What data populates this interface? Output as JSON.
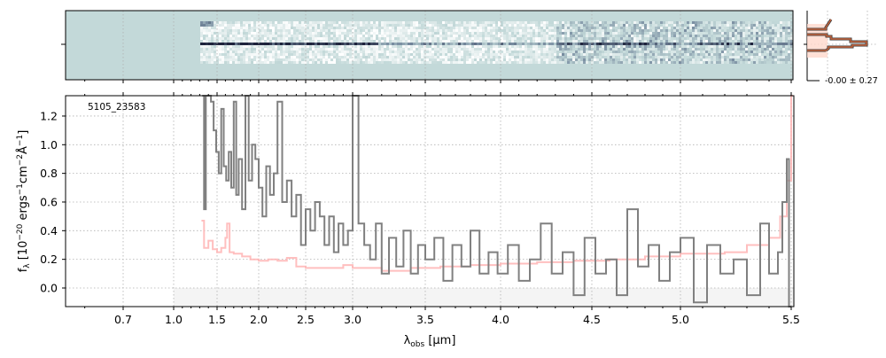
{
  "chart_data": {
    "type": "line",
    "title": "",
    "object_label": "5105_23583",
    "xlabel": {
      "main": "λ",
      "sub": "obs",
      "rest": " [μm]"
    },
    "ylabel": [
      {
        "t": "f",
        "s": "n"
      },
      {
        "t": "λ",
        "s": "sub"
      },
      {
        "t": " [10",
        "s": "n"
      },
      {
        "t": "−20",
        "s": "sup"
      },
      {
        "t": " ergs",
        "s": "n"
      },
      {
        "t": "−1",
        "s": "sup"
      },
      {
        "t": "cm",
        "s": "n"
      },
      {
        "t": "−2",
        "s": "sup"
      },
      {
        "t": "Å",
        "s": "n"
      },
      {
        "t": "−1",
        "s": "sup"
      },
      {
        "t": "]",
        "s": "n"
      }
    ],
    "xticks": [
      "0.7",
      "1.0",
      "1.5",
      "2.0",
      "2.5",
      "3.0",
      "3.5",
      "4.0",
      "4.5",
      "5.0",
      "5.5"
    ],
    "yticks": [
      "0.0",
      "0.2",
      "0.4",
      "0.6",
      "0.8",
      "1.0",
      "1.2"
    ],
    "ylim": [
      -0.13,
      1.34
    ],
    "xlim": [
      0.55,
      5.52
    ],
    "grid": true,
    "colors": {
      "flux": "#808080",
      "error": "#ffb4b4",
      "image_bg": "#c3d9d9",
      "hist": "#8b3a1e"
    },
    "series": [
      {
        "name": "flux",
        "x": [
          1.33,
          1.35,
          1.37,
          1.4,
          1.43,
          1.46,
          1.49,
          1.52,
          1.55,
          1.58,
          1.61,
          1.64,
          1.67,
          1.7,
          1.73,
          1.76,
          1.8,
          1.84,
          1.88,
          1.92,
          1.96,
          2.0,
          2.04,
          2.08,
          2.12,
          2.16,
          2.2,
          2.25,
          2.3,
          2.35,
          2.4,
          2.45,
          2.5,
          2.55,
          2.6,
          2.65,
          2.7,
          2.75,
          2.8,
          2.85,
          2.9,
          2.95,
          3.0,
          3.04,
          3.08,
          3.12,
          3.16,
          3.2,
          3.25,
          3.3,
          3.35,
          3.4,
          3.45,
          3.5,
          3.56,
          3.62,
          3.68,
          3.74,
          3.8,
          3.86,
          3.92,
          3.98,
          4.04,
          4.1,
          4.16,
          4.22,
          4.28,
          4.34,
          4.4,
          4.46,
          4.52,
          4.58,
          4.64,
          4.7,
          4.76,
          4.82,
          4.88,
          4.94,
          5.0,
          5.06,
          5.12,
          5.18,
          5.24,
          5.3,
          5.36,
          5.4,
          5.44,
          5.46,
          5.48,
          5.49
        ],
        "y": [
          1.4,
          0.55,
          1.4,
          1.4,
          1.3,
          1.1,
          0.95,
          0.8,
          1.25,
          0.85,
          0.75,
          0.95,
          0.7,
          1.3,
          0.65,
          0.9,
          0.55,
          1.4,
          0.75,
          1.0,
          0.9,
          0.7,
          0.5,
          0.85,
          0.65,
          0.8,
          1.3,
          0.6,
          0.75,
          0.5,
          0.65,
          0.3,
          0.55,
          0.4,
          0.6,
          0.5,
          0.3,
          0.5,
          0.25,
          0.45,
          0.3,
          0.4,
          1.4,
          0.45,
          0.3,
          0.2,
          0.45,
          0.1,
          0.35,
          0.15,
          0.4,
          0.1,
          0.3,
          0.2,
          0.35,
          0.05,
          0.3,
          0.15,
          0.4,
          0.1,
          0.25,
          0.1,
          0.3,
          0.05,
          0.2,
          0.45,
          0.1,
          0.25,
          -0.05,
          0.35,
          0.1,
          0.2,
          -0.05,
          0.55,
          0.15,
          0.3,
          0.05,
          0.25,
          0.35,
          -0.1,
          0.3,
          0.1,
          0.2,
          -0.05,
          0.45,
          0.1,
          0.25,
          0.6,
          0.9,
          -0.15
        ]
      },
      {
        "name": "error",
        "x": [
          1.32,
          1.35,
          1.4,
          1.45,
          1.5,
          1.55,
          1.6,
          1.62,
          1.65,
          1.7,
          1.8,
          1.9,
          2.0,
          2.1,
          2.2,
          2.3,
          2.4,
          2.5,
          2.7,
          2.9,
          3.0,
          3.2,
          3.4,
          3.6,
          3.8,
          4.0,
          4.2,
          4.4,
          4.6,
          4.8,
          5.0,
          5.2,
          5.3,
          5.4,
          5.45,
          5.48,
          5.5
        ],
        "y": [
          0.47,
          0.28,
          0.33,
          0.27,
          0.25,
          0.28,
          0.35,
          0.45,
          0.25,
          0.24,
          0.22,
          0.2,
          0.19,
          0.2,
          0.19,
          0.21,
          0.15,
          0.14,
          0.14,
          0.16,
          0.14,
          0.12,
          0.14,
          0.15,
          0.16,
          0.17,
          0.18,
          0.19,
          0.2,
          0.22,
          0.24,
          0.25,
          0.3,
          0.35,
          0.5,
          0.75,
          1.35
        ]
      }
    ],
    "profile_panel": {
      "label": "-0.00 ± 0.27"
    }
  }
}
